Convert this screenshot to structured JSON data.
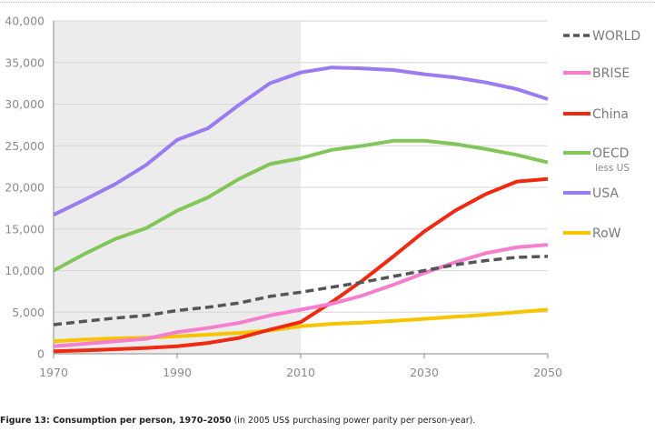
{
  "caption": {
    "bold": "Figure 13: Consumption per person, 1970–2050",
    "normal": " (in 2005 US$ purchasing power parity per person-year)."
  },
  "chart_data": {
    "type": "line",
    "title": "",
    "xlabel": "",
    "ylabel": "",
    "xlim": [
      1970,
      2050
    ],
    "ylim": [
      0,
      40000
    ],
    "x_ticks": [
      1970,
      1990,
      2010,
      2030,
      2050
    ],
    "x_tick_labels": [
      "1970",
      "1990",
      "2010",
      "2030",
      "2050"
    ],
    "y_ticks": [
      0,
      5000,
      10000,
      15000,
      20000,
      25000,
      30000,
      35000,
      40000
    ],
    "y_tick_labels": [
      "0",
      "5,000",
      "10,000",
      "15,000",
      "20,000",
      "25,000",
      "30,000",
      "35,000",
      "40,000"
    ],
    "grid": "horizontal",
    "shaded_region": {
      "x_from": 1970,
      "x_to": 2010,
      "color": "#ececec"
    },
    "legend_position": "right",
    "x": [
      1970,
      1975,
      1980,
      1985,
      1990,
      1995,
      2000,
      2005,
      2010,
      2015,
      2020,
      2025,
      2030,
      2035,
      2040,
      2045,
      2050
    ],
    "series": [
      {
        "name": "WORLD",
        "sublabel": "",
        "color": "#555555",
        "dashed": true,
        "values": [
          3500,
          3900,
          4300,
          4600,
          5200,
          5600,
          6100,
          6900,
          7400,
          8000,
          8600,
          9300,
          10000,
          10700,
          11200,
          11600,
          11700
        ]
      },
      {
        "name": "BRISE",
        "sublabel": "",
        "color": "#f57ece",
        "dashed": false,
        "values": [
          900,
          1200,
          1500,
          1800,
          2600,
          3100,
          3700,
          4600,
          5300,
          6000,
          7000,
          8300,
          9700,
          11000,
          12100,
          12800,
          13100
        ]
      },
      {
        "name": "China",
        "sublabel": "",
        "color": "#ee2a10",
        "dashed": false,
        "values": [
          300,
          400,
          550,
          700,
          900,
          1300,
          1900,
          2900,
          3800,
          6200,
          8800,
          11700,
          14700,
          17200,
          19200,
          20700,
          21000
        ]
      },
      {
        "name": "OECD",
        "sublabel": "less US",
        "color": "#82c65a",
        "dashed": false,
        "values": [
          10000,
          12000,
          13800,
          15100,
          17200,
          18800,
          21000,
          22800,
          23500,
          24500,
          25000,
          25600,
          25600,
          25200,
          24600,
          23900,
          23000
        ]
      },
      {
        "name": "USA",
        "sublabel": "",
        "color": "#9b7bf0",
        "dashed": false,
        "values": [
          16700,
          18500,
          20400,
          22700,
          25700,
          27100,
          29900,
          32500,
          33800,
          34400,
          34300,
          34100,
          33600,
          33200,
          32600,
          31800,
          30600
        ]
      },
      {
        "name": "RoW",
        "sublabel": "",
        "color": "#f7c400",
        "dashed": false,
        "values": [
          1500,
          1700,
          1850,
          1950,
          2100,
          2300,
          2500,
          2800,
          3300,
          3600,
          3750,
          3950,
          4200,
          4450,
          4700,
          5000,
          5300
        ]
      }
    ]
  }
}
